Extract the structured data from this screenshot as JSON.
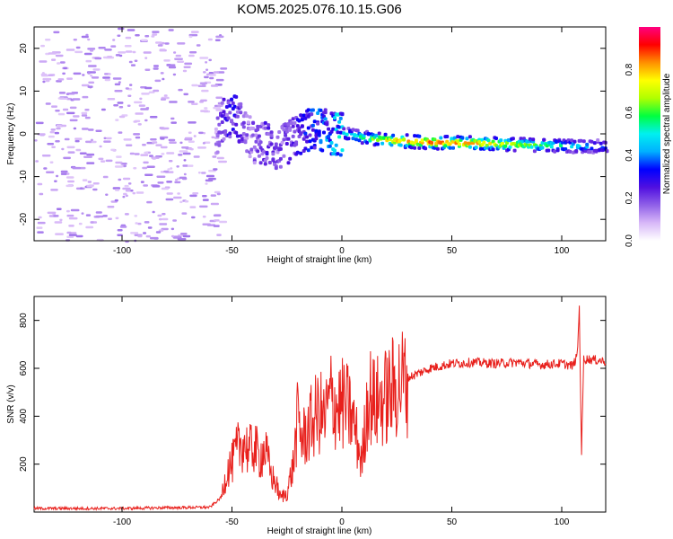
{
  "title": "KOM5.2025.076.10.15.G06",
  "chart_data": [
    {
      "type": "heatmap",
      "xlabel": "Height of straight line (km)",
      "ylabel": "Frequency (Hz)",
      "xlim": [
        -140,
        120
      ],
      "ylim": [
        -25,
        25
      ],
      "x_ticks": [
        -100,
        -50,
        0,
        50,
        100
      ],
      "y_ticks": [
        -20,
        -10,
        0,
        10,
        20
      ],
      "colorbar": {
        "label": "Normalized spectral amplitude",
        "range": [
          0,
          1
        ],
        "ticks": [
          "0.0",
          "0.2",
          "0.4",
          "0.6",
          "0.8"
        ],
        "colormap": [
          "#ffffff",
          "#d8b8f8",
          "#9060e8",
          "#5010e0",
          "#0000ff",
          "#00b0ff",
          "#00f0f0",
          "#00ff40",
          "#b0ff00",
          "#ffff00",
          "#ff9000",
          "#ff0000",
          "#ff0080"
        ]
      },
      "trend": {
        "description_points_x": [
          -58,
          -55,
          -50,
          -45,
          -40,
          -35,
          -30,
          -25,
          -20,
          -15,
          -10,
          -5,
          0,
          5,
          10,
          20,
          40,
          60,
          80,
          100,
          120
        ],
        "freq_y": [
          0,
          3,
          5,
          1,
          -3,
          -2,
          -4,
          -2,
          0,
          1,
          1,
          0,
          0,
          -0.5,
          -1,
          -1.5,
          -2,
          -2.2,
          -2.5,
          -2.8,
          -3
        ],
        "peak_amplitude": [
          0.15,
          0.25,
          0.3,
          0.2,
          0.2,
          0.25,
          0.2,
          0.25,
          0.3,
          0.35,
          0.4,
          0.45,
          0.5,
          0.55,
          0.6,
          0.8,
          0.9,
          0.85,
          0.7,
          0.55,
          0.4
        ]
      }
    },
    {
      "type": "line",
      "xlabel": "Height of straight line (km)",
      "ylabel": "SNR (v/v)",
      "xlim": [
        -140,
        120
      ],
      "ylim": [
        0,
        900
      ],
      "x_ticks": [
        -100,
        -50,
        0,
        50,
        100
      ],
      "y_ticks": [
        200,
        400,
        600,
        800
      ],
      "series": [
        {
          "color": "#e8201c",
          "x": [
            -140,
            -120,
            -100,
            -80,
            -60,
            -55,
            -52,
            -50,
            -48,
            -45,
            -42,
            -40,
            -38,
            -35,
            -32,
            -30,
            -28,
            -25,
            -22,
            -20,
            -18,
            -15,
            -12,
            -10,
            -8,
            -5,
            -2,
            0,
            3,
            6,
            9,
            12,
            15,
            20,
            25,
            30,
            40,
            50,
            60,
            70,
            80,
            90,
            100,
            105,
            107,
            108,
            109,
            110,
            115,
            120
          ],
          "y": [
            15,
            15,
            15,
            18,
            20,
            60,
            180,
            200,
            250,
            300,
            250,
            280,
            230,
            260,
            150,
            120,
            60,
            80,
            200,
            400,
            300,
            350,
            400,
            420,
            380,
            480,
            440,
            450,
            430,
            350,
            200,
            500,
            450,
            480,
            530,
            560,
            600,
            620,
            625,
            620,
            625,
            615,
            620,
            610,
            650,
            850,
            250,
            640,
            635,
            630
          ]
        }
      ]
    }
  ]
}
